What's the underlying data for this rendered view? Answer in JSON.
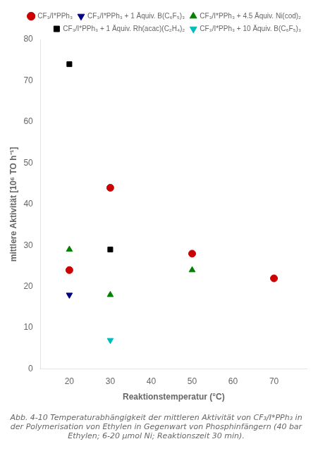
{
  "chart_data": {
    "type": "scatter",
    "title": "Abb. 4-10 Temperaturabhängigkeit der mittleren Aktivität von CF₃/I*PPh₃ in der Polymerisation von Ethylen in Gegenwart von Phosphinfängern (40 bar Ethylen; 6-20 μmol Ni; Reaktionszeit 30 min).",
    "xlabel": "Reaktionstemperatur (°C)",
    "ylabel": "mittlere Aktivität [10⁶ TO h⁻¹]",
    "series": [
      {
        "name": "CF₃/I*PPh₃",
        "color": "#cc0000",
        "marker": "circle",
        "x": [
          20,
          30,
          50,
          70
        ],
        "values": [
          24,
          44,
          28,
          22
        ]
      },
      {
        "name": "CF₃/I*PPh₃ + 1 Äquiv. B(C₆F₅)₃",
        "color": "#000080",
        "marker": "triangle_down",
        "x": [
          20
        ],
        "values": [
          18
        ]
      },
      {
        "name": "CF₃/I*PPh₃ + 4.5 Äquiv. Ni(cod)₂",
        "color": "#008000",
        "marker": "triangle_up",
        "x": [
          20,
          30,
          50
        ],
        "values": [
          29,
          18,
          24
        ]
      },
      {
        "name": "CF₃/I*PPh₃ + 1 Äquiv. Rh(acac)(C₂H₄)₂",
        "color": "#000000",
        "marker": "square",
        "x": [
          20,
          30
        ],
        "values": [
          74,
          29
        ]
      },
      {
        "name": "CF₃/I*PPh₃ + 10 Äquiv. B(C₆F₅)₃",
        "color": "#00bbbb",
        "marker": "triangle_down",
        "x": [
          30
        ],
        "values": [
          7
        ]
      }
    ],
    "xlim": [
      13,
      78
    ],
    "ylim": [
      0,
      80
    ],
    "xticks": [
      20,
      30,
      40,
      50,
      60,
      70
    ],
    "yticks": [
      0,
      10,
      20,
      30,
      40,
      50,
      60,
      70,
      80
    ],
    "grid": false,
    "legend": "upper right"
  }
}
